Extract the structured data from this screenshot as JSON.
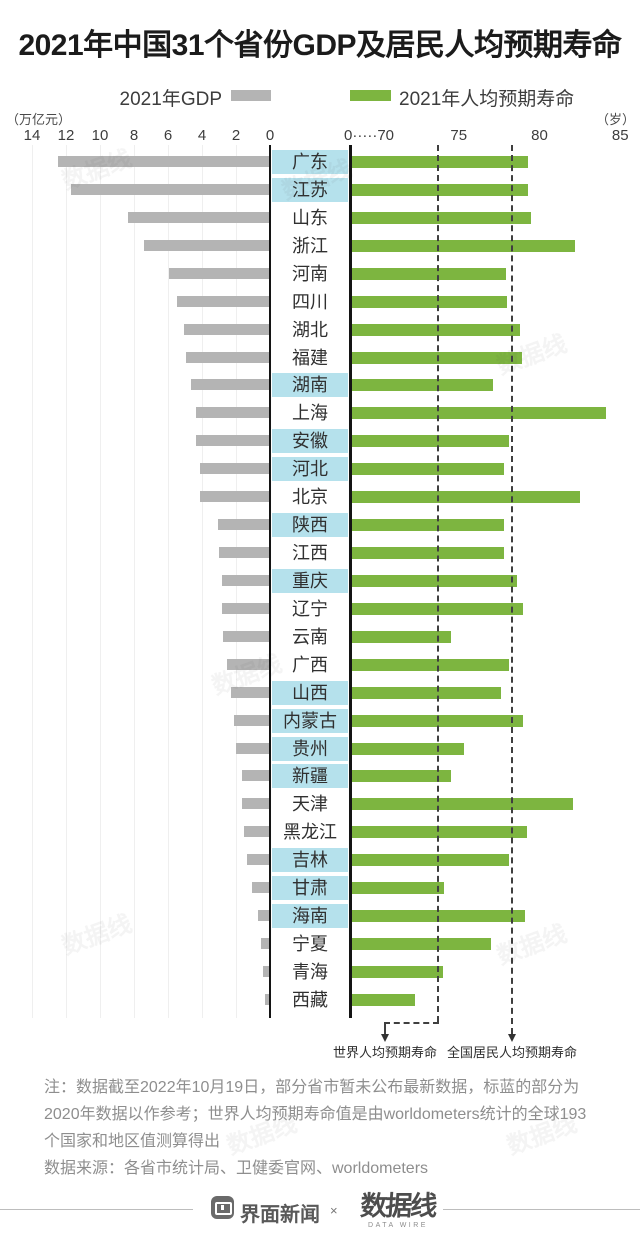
{
  "title": "2021年中国31个省份GDP及居民人均预期寿命",
  "legend": {
    "gdp": "2021年GDP",
    "life": "2021年人均预期寿命"
  },
  "axes": {
    "left_unit": "（万亿元）",
    "right_unit": "（岁）",
    "left_ticks": [
      14,
      12,
      10,
      8,
      6,
      4,
      2,
      0
    ],
    "right_zero_label": "0·····70",
    "right_ticks": [
      75,
      80,
      85
    ]
  },
  "reference_lines": {
    "world": {
      "label": "世界人均预期寿命",
      "value": 73.7
    },
    "national": {
      "label": "全国居民人均预期寿命",
      "value": 78.3
    }
  },
  "provinces": [
    {
      "name": "广东",
      "gdp": 12.44,
      "life": 79.3,
      "prior": true
    },
    {
      "name": "江苏",
      "gdp": 11.64,
      "life": 79.3,
      "prior": true
    },
    {
      "name": "山东",
      "gdp": 8.31,
      "life": 79.5,
      "prior": false
    },
    {
      "name": "浙江",
      "gdp": 7.35,
      "life": 82.2,
      "prior": false
    },
    {
      "name": "河南",
      "gdp": 5.89,
      "life": 77.9,
      "prior": false
    },
    {
      "name": "四川",
      "gdp": 5.39,
      "life": 78.0,
      "prior": false
    },
    {
      "name": "湖北",
      "gdp": 5.0,
      "life": 78.8,
      "prior": false
    },
    {
      "name": "福建",
      "gdp": 4.88,
      "life": 78.9,
      "prior": false
    },
    {
      "name": "湖南",
      "gdp": 4.61,
      "life": 77.1,
      "prior": true
    },
    {
      "name": "上海",
      "gdp": 4.32,
      "life": 84.1,
      "prior": false
    },
    {
      "name": "安徽",
      "gdp": 4.3,
      "life": 78.1,
      "prior": true
    },
    {
      "name": "河北",
      "gdp": 4.04,
      "life": 77.8,
      "prior": true
    },
    {
      "name": "北京",
      "gdp": 4.03,
      "life": 82.5,
      "prior": false
    },
    {
      "name": "陕西",
      "gdp": 2.98,
      "life": 77.8,
      "prior": true
    },
    {
      "name": "江西",
      "gdp": 2.96,
      "life": 77.8,
      "prior": false
    },
    {
      "name": "重庆",
      "gdp": 2.79,
      "life": 78.6,
      "prior": true
    },
    {
      "name": "辽宁",
      "gdp": 2.77,
      "life": 79.0,
      "prior": false
    },
    {
      "name": "云南",
      "gdp": 2.71,
      "life": 74.5,
      "prior": false
    },
    {
      "name": "广西",
      "gdp": 2.47,
      "life": 78.1,
      "prior": false
    },
    {
      "name": "山西",
      "gdp": 2.26,
      "life": 77.6,
      "prior": true
    },
    {
      "name": "内蒙古",
      "gdp": 2.05,
      "life": 79.0,
      "prior": true
    },
    {
      "name": "贵州",
      "gdp": 1.96,
      "life": 75.3,
      "prior": true
    },
    {
      "name": "新疆",
      "gdp": 1.6,
      "life": 74.5,
      "prior": true
    },
    {
      "name": "天津",
      "gdp": 1.57,
      "life": 82.1,
      "prior": false
    },
    {
      "name": "黑龙江",
      "gdp": 1.49,
      "life": 79.2,
      "prior": false
    },
    {
      "name": "吉林",
      "gdp": 1.32,
      "life": 78.1,
      "prior": true
    },
    {
      "name": "甘肃",
      "gdp": 1.02,
      "life": 74.1,
      "prior": true
    },
    {
      "name": "海南",
      "gdp": 0.65,
      "life": 79.1,
      "prior": true
    },
    {
      "name": "宁夏",
      "gdp": 0.45,
      "life": 77.0,
      "prior": false
    },
    {
      "name": "青海",
      "gdp": 0.33,
      "life": 74.0,
      "prior": false
    },
    {
      "name": "西藏",
      "gdp": 0.21,
      "life": 72.3,
      "prior": false
    }
  ],
  "notes": [
    "注：数据截至2022年10月19日，部分省市暂未公布最新数据，标蓝的部分为",
    "2020年数据以作参考；世界人均预期寿命值是由worldometers统计的全球193",
    "个国家和地区值测算得出",
    "数据来源：各省市统计局、卫健委官网、worldometers"
  ],
  "footer": {
    "jiemian": "界面新闻",
    "cross": "×",
    "datawire": "数据线",
    "datawire_sub": "DATA WIRE"
  },
  "watermark": "数据线",
  "colors": {
    "gdp_bar": "#b4b4b4",
    "life_bar": "#7db540",
    "highlight_2020": "#b5e1ec",
    "axis": "#141414",
    "note_text": "#8e8e8e"
  },
  "chart_data": {
    "type": "bar",
    "orientation": "horizontal-bidirectional",
    "title": "2021年中国31个省份GDP及居民人均预期寿命",
    "categories": [
      "广东",
      "江苏",
      "山东",
      "浙江",
      "河南",
      "四川",
      "湖北",
      "福建",
      "湖南",
      "上海",
      "安徽",
      "河北",
      "北京",
      "陕西",
      "江西",
      "重庆",
      "辽宁",
      "云南",
      "广西",
      "山西",
      "内蒙古",
      "贵州",
      "新疆",
      "天津",
      "黑龙江",
      "吉林",
      "甘肃",
      "海南",
      "宁夏",
      "青海",
      "西藏"
    ],
    "series": [
      {
        "name": "2021年GDP",
        "unit": "万亿元",
        "axis_range": [
          0,
          14
        ],
        "direction": "left",
        "values": [
          12.44,
          11.64,
          8.31,
          7.35,
          5.89,
          5.39,
          5.0,
          4.88,
          4.61,
          4.32,
          4.3,
          4.04,
          4.03,
          2.98,
          2.96,
          2.79,
          2.77,
          2.71,
          2.47,
          2.26,
          2.05,
          1.96,
          1.6,
          1.57,
          1.49,
          1.32,
          1.02,
          0.65,
          0.45,
          0.33,
          0.21
        ]
      },
      {
        "name": "2021年人均预期寿命",
        "unit": "岁",
        "axis_range": [
          70,
          85
        ],
        "direction": "right",
        "values": [
          79.3,
          79.3,
          79.5,
          82.2,
          77.9,
          78.0,
          78.8,
          78.9,
          77.1,
          84.1,
          78.1,
          77.8,
          82.5,
          77.8,
          77.8,
          78.6,
          79.0,
          74.5,
          78.1,
          77.6,
          79.0,
          75.3,
          74.5,
          82.1,
          79.2,
          78.1,
          74.1,
          79.1,
          77.0,
          74.0,
          72.3
        ]
      }
    ],
    "highlighted_2020_data": [
      "广东",
      "江苏",
      "湖南",
      "安徽",
      "河北",
      "陕西",
      "重庆",
      "山西",
      "内蒙古",
      "贵州",
      "新疆",
      "吉林",
      "甘肃",
      "海南"
    ],
    "reference_lines": [
      {
        "label": "世界人均预期寿命",
        "value": 73.7
      },
      {
        "label": "全国居民人均预期寿命",
        "value": 78.3
      }
    ],
    "legend_position": "top",
    "grid": "light vertical gridlines on GDP axis only"
  }
}
